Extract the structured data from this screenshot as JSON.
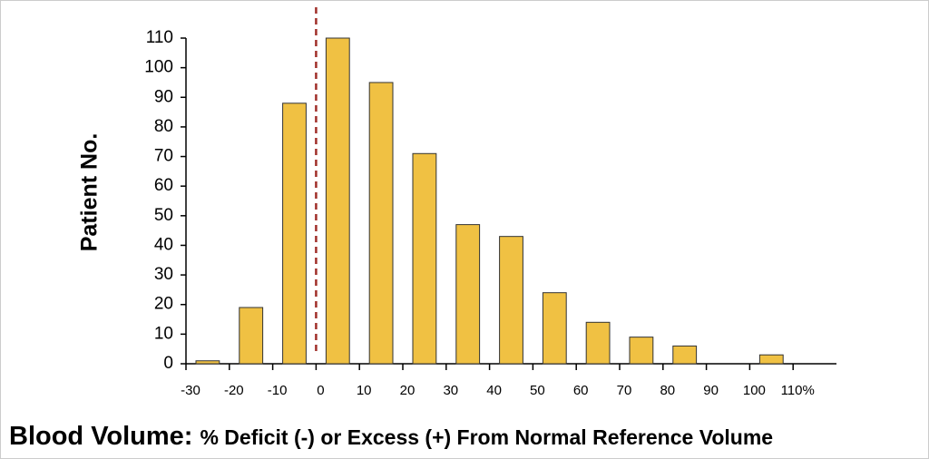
{
  "chart_data": {
    "type": "histogram",
    "ylabel": "Patient No.",
    "xlabel": [
      "Blood Volume:",
      "% Deficit (-) or Excess (+) From Normal Reference Volume"
    ],
    "bins": [
      -30,
      -20,
      -10,
      0,
      10,
      20,
      30,
      40,
      50,
      60,
      70,
      80,
      90,
      100,
      110
    ],
    "values": [
      1,
      19,
      88,
      110,
      95,
      71,
      47,
      43,
      24,
      14,
      9,
      6,
      0,
      3
    ],
    "color": "#f0c143",
    "edge_color": "#333333",
    "xlim": [
      -30,
      120
    ],
    "ylim": [
      0,
      110
    ],
    "xticks": [
      -30,
      -20,
      -10,
      0,
      10,
      20,
      30,
      40,
      50,
      60,
      70,
      80,
      90,
      100,
      {
        "value": 110,
        "label": "110%"
      }
    ],
    "yticks": [
      0,
      10,
      20,
      30,
      40,
      50,
      60,
      70,
      80,
      90,
      100,
      110
    ],
    "reference_line": {
      "x": 0,
      "color": "#a0302a"
    }
  }
}
